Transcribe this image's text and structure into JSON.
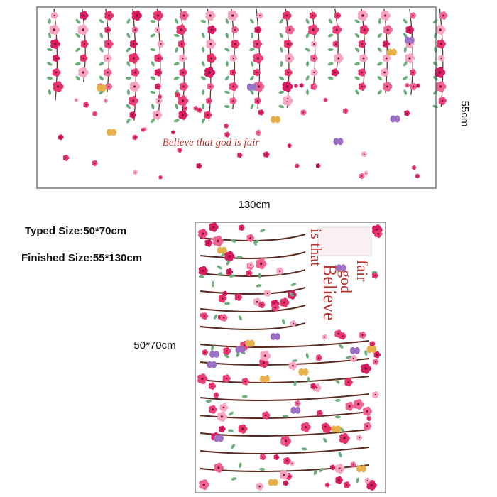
{
  "preview": {
    "caption": "Believe that god is fair",
    "width_label": "130cm",
    "height_label": "55cm"
  },
  "specs": {
    "typed_size": "Typed Size:50*70cm",
    "finished_size": "Finished Size:55*130cm"
  },
  "sheet": {
    "size_label": "50*70cm",
    "caption_lines": [
      "Believe",
      "is that",
      "god",
      "fair"
    ]
  }
}
